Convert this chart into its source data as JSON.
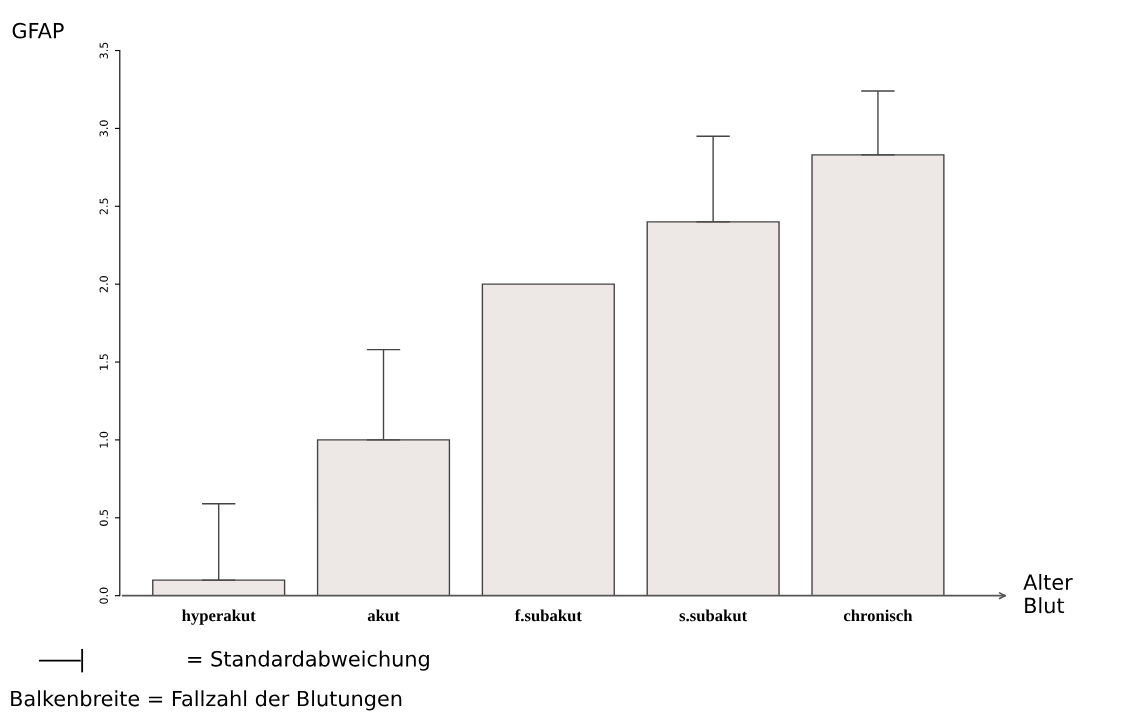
{
  "chart_data": {
    "type": "bar",
    "ylabel": "GFAP",
    "xlabel": "Alter\nBlut",
    "categories": [
      "hyperakut",
      "akut",
      "f.subakut",
      "s.subakut",
      "chronisch"
    ],
    "values": [
      0.1,
      1.0,
      2.0,
      2.4,
      2.83
    ],
    "errors": [
      [
        0.1,
        0.59
      ],
      [
        1.0,
        1.58
      ],
      null,
      [
        2.4,
        2.95
      ],
      [
        2.83,
        3.24
      ]
    ],
    "color": "#ede8e6",
    "ylim": [
      0,
      3.5
    ],
    "yticks": [
      {
        "value": 0,
        "label": "0.0"
      },
      0.5,
      {
        "value": 1,
        "label": "1.0"
      },
      1.5,
      {
        "value": 2,
        "label": "2.0"
      },
      2.5,
      {
        "value": 3,
        "label": "3.0"
      },
      3.5
    ],
    "grid": false,
    "annotations": [
      "= Standardabweichung",
      "Balkenbreite = Fallzahl der Blutungen"
    ]
  }
}
